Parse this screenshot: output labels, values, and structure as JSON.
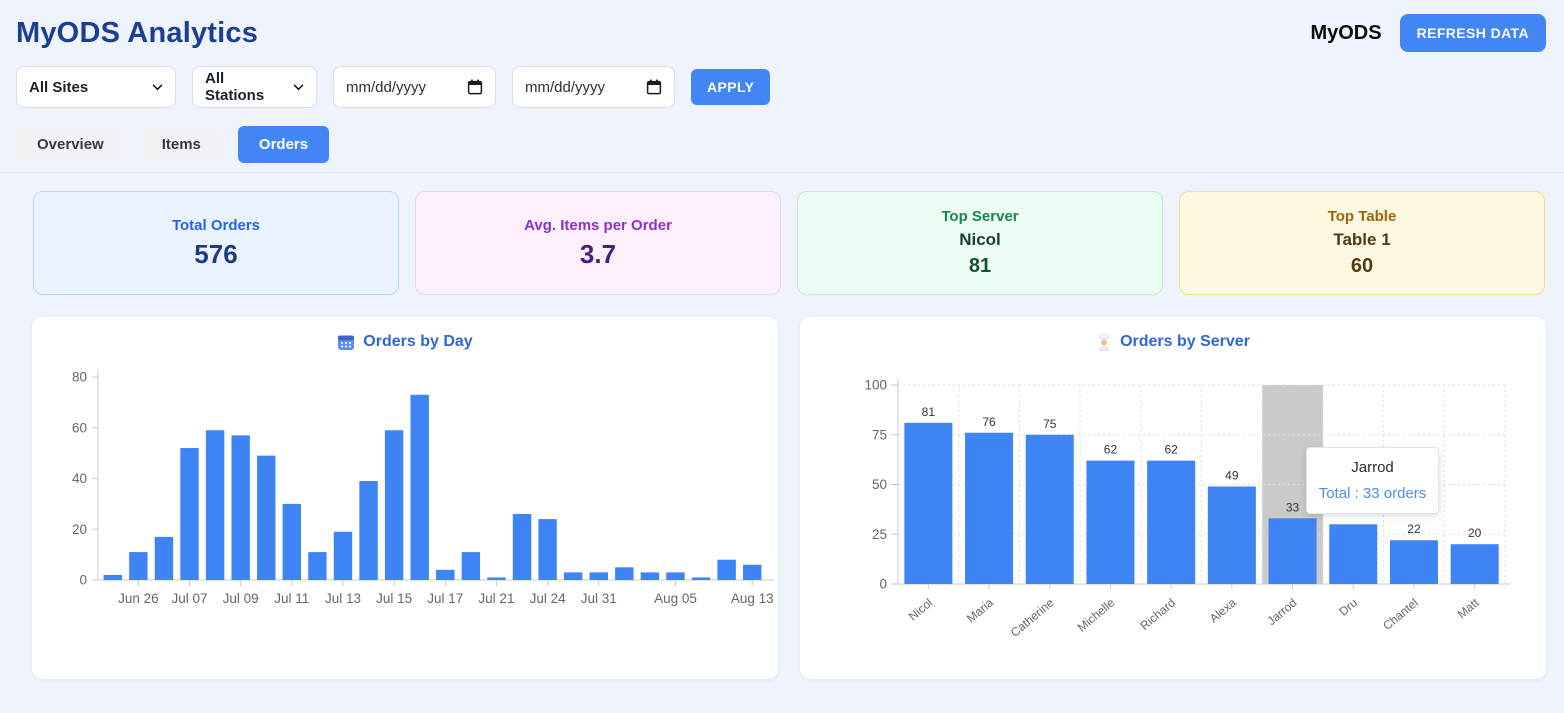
{
  "theme": {
    "accent": "#4285f4",
    "page_bg": "#eff3fb",
    "heading_color": "#1c3e93",
    "chart_title_color": "#2f66d9",
    "axis_text_color": "#666666",
    "grid_color": "#dcdcdc",
    "bar_color": "#3e84f4"
  },
  "header": {
    "title": "MyODS Analytics",
    "brand": "MyODS",
    "refresh_button": "REFRESH DATA"
  },
  "filters": {
    "site_select_value": "All Sites",
    "station_select_value": "All Stations",
    "date_from_value": "mm/dd/yyyy",
    "date_to_value": "mm/dd/yyyy",
    "apply_button": "APPLY"
  },
  "tabs": [
    {
      "label": "Overview",
      "active": false
    },
    {
      "label": "Items",
      "active": false
    },
    {
      "label": "Orders",
      "active": true
    }
  ],
  "stat_cards": [
    {
      "label": "Total Orders",
      "value": "576",
      "bg": "#eaf3fe",
      "border": "#b9d7f8",
      "label_color": "#2563eb",
      "value_color": "#1e3a8a"
    },
    {
      "label": "Avg. Items per Order",
      "value": "3.7",
      "bg": "#fbf0fc",
      "border": "#eed2f1",
      "label_color": "#8e30c9",
      "value_color": "#4a1d7a"
    },
    {
      "label": "Top Server",
      "name": "Nicol",
      "value": "81",
      "bg": "#edfdf4",
      "border": "#bfe9d2",
      "label_color": "#178557",
      "name_color": "#173f33",
      "value_color": "#14532d"
    },
    {
      "label": "Top Table",
      "name": "Table 1",
      "value": "60",
      "bg": "#fdf8e2",
      "border": "#f2df90",
      "label_color": "#a16207",
      "name_color": "#4f3b15",
      "value_color": "#5b3a0d"
    }
  ],
  "chart_data": [
    {
      "type": "bar",
      "title": "Orders by Day",
      "icon": "calendar-icon",
      "values": [
        2,
        11,
        17,
        52,
        59,
        57,
        49,
        30,
        11,
        19,
        39,
        59,
        73,
        4,
        11,
        1,
        26,
        24,
        3,
        3,
        5,
        3,
        3,
        1,
        8,
        6
      ],
      "x_tick_labels": [
        "Jun 26",
        "Jul 07",
        "Jul 09",
        "Jul 11",
        "Jul 13",
        "Jul 15",
        "Jul 17",
        "Jul 21",
        "Jul 24",
        "Jul 31",
        "Aug 05",
        "Aug 13"
      ],
      "x_tick_indices": [
        1,
        3,
        5,
        7,
        9,
        11,
        13,
        15,
        17,
        19,
        22,
        25
      ],
      "yticks": [
        0,
        20,
        40,
        60,
        80
      ],
      "ylim": [
        0,
        80
      ],
      "grid": false,
      "legend": false
    },
    {
      "type": "bar",
      "title": "Orders by Server",
      "icon": "chef-icon",
      "categories": [
        "Nicol",
        "Maria",
        "Catherine",
        "Michelle",
        "Richard",
        "Alexa",
        "Jarrod",
        "Dru",
        "Chantel",
        "Matt"
      ],
      "values": [
        81,
        76,
        75,
        62,
        62,
        49,
        33,
        30,
        22,
        20
      ],
      "value_labels": [
        "81",
        "76",
        "75",
        "62",
        "62",
        "49",
        "33",
        "",
        "22",
        "20"
      ],
      "yticks": [
        0,
        25,
        50,
        75,
        100
      ],
      "ylim": [
        0,
        100
      ],
      "grid": true,
      "legend": false,
      "highlight_index": 6,
      "highlight_color": "#cacaca",
      "tooltip": {
        "title": "Jarrod",
        "body": "Total : 33 orders"
      }
    }
  ]
}
